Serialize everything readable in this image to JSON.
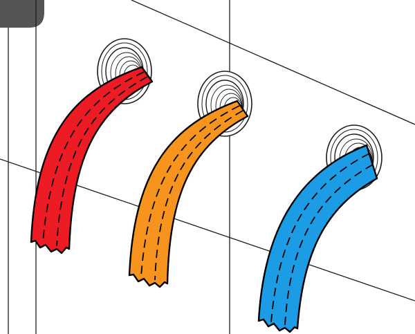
{
  "figure": {
    "step_badge": {
      "icon": "step-number-badge",
      "color": "#555555"
    },
    "wall": {
      "line_color": "#1a1a1a",
      "surface_color": "#ffffff"
    },
    "outlets": [
      {
        "name": "outlet-left",
        "icon": "conduit-outlet-ring"
      },
      {
        "name": "outlet-middle",
        "icon": "conduit-outlet-ring"
      },
      {
        "name": "outlet-right",
        "icon": "conduit-outlet-ring"
      }
    ],
    "hoses": [
      {
        "name": "red",
        "color": "#ed1c24"
      },
      {
        "name": "orange",
        "color": "#f7941d"
      },
      {
        "name": "blue",
        "color": "#1b9ce4"
      }
    ]
  }
}
